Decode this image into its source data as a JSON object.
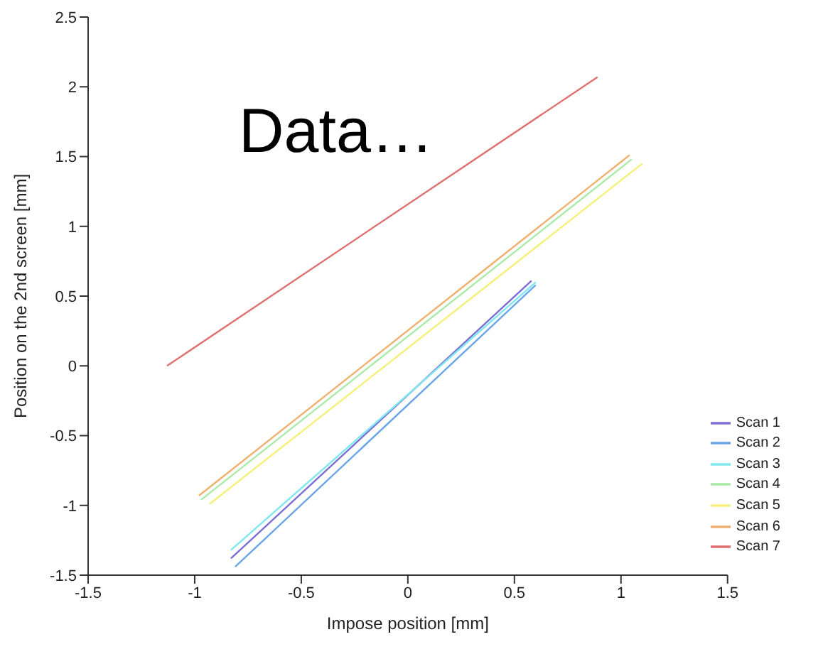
{
  "chart_data": {
    "type": "line",
    "xlabel": "Impose position [mm]",
    "ylabel": "Position on the 2nd screen [mm]",
    "annotations": [
      "Data…"
    ],
    "xlim": [
      -1.5,
      1.5
    ],
    "xticks": [
      -1.5,
      -1,
      -0.5,
      0,
      0.5,
      1,
      1.5
    ],
    "ylim": [
      -1.5,
      2.5
    ],
    "yticks": [
      -1.5,
      -1,
      -0.5,
      0,
      0.5,
      1,
      1.5,
      2,
      2.5
    ],
    "grid": false,
    "legend": "bottom right",
    "marker": "none",
    "line_style": "solid",
    "series": [
      {
        "name": "Scan 1",
        "color": "#7b6fd6",
        "x": [
          -0.83,
          0.58
        ],
        "values": [
          -1.38,
          0.61
        ]
      },
      {
        "name": "Scan 2",
        "color": "#6aa5e8",
        "x": [
          -0.81,
          0.6
        ],
        "values": [
          -1.44,
          0.58
        ]
      },
      {
        "name": "Scan 3",
        "color": "#7fe8ee",
        "x": [
          -0.83,
          0.6
        ],
        "values": [
          -1.32,
          0.6
        ]
      },
      {
        "name": "Scan 4",
        "color": "#a8eaa8",
        "x": [
          -0.97,
          1.05
        ],
        "values": [
          -0.96,
          1.48
        ]
      },
      {
        "name": "Scan 5",
        "color": "#f5f07a",
        "x": [
          -0.93,
          1.1
        ],
        "values": [
          -0.99,
          1.45
        ]
      },
      {
        "name": "Scan 6",
        "color": "#f0b070",
        "x": [
          -0.98,
          1.04
        ],
        "values": [
          -0.93,
          1.51
        ]
      },
      {
        "name": "Scan 7",
        "color": "#e07070",
        "x": [
          -1.13,
          0.89
        ],
        "values": [
          0,
          2.07
        ]
      }
    ]
  }
}
